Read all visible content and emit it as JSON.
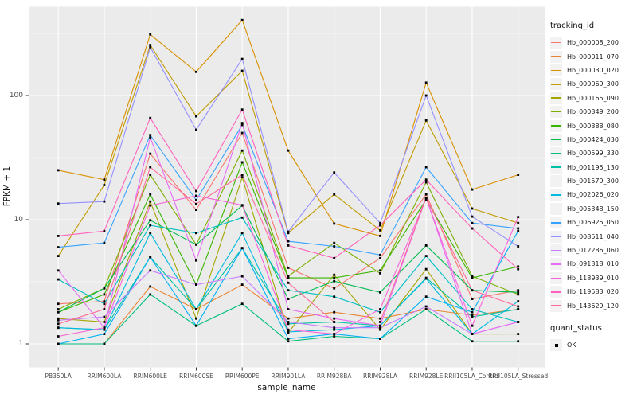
{
  "chart_data": {
    "type": "line",
    "title": "",
    "xlabel": "sample_name",
    "ylabel": "FPKM + 1",
    "y_scale": "log10",
    "y_ticks": [
      1,
      10,
      100
    ],
    "y_minor_ticks": [
      3.162,
      31.62,
      316.2
    ],
    "ylim": [
      1,
      450
    ],
    "grid": true,
    "legend_position": "right",
    "legend_title": "tracking_id",
    "point_marker": "black-square",
    "categories": [
      "PB350LA",
      "RRIM600LA",
      "RRIM600LE",
      "RRIM600SE",
      "RRIM600PE",
      "RRIM901LA",
      "RRIM928BA",
      "RRIM928LA",
      "RRIM928LE",
      "RRII105LA_Control",
      "RRII105LA_Stressed"
    ],
    "series": [
      {
        "name": "Hb_000008_200",
        "color": "#F8766D",
        "values": [
          2.1,
          2.2,
          34,
          12,
          50,
          4.1,
          2.8,
          4.9,
          16,
          2.3,
          2.7
        ]
      },
      {
        "name": "Hb_000011_070",
        "color": "#EA8331",
        "values": [
          1.0,
          1.0,
          2.9,
          1.9,
          3.0,
          1.6,
          1.8,
          1.6,
          1.9,
          1.7,
          1.9
        ]
      },
      {
        "name": "Hb_000030_020",
        "color": "#D89000",
        "values": [
          25,
          21,
          310,
          155,
          405,
          36,
          9.3,
          7.4,
          127,
          17.5,
          23
        ]
      },
      {
        "name": "Hb_000069_300",
        "color": "#C09B00",
        "values": [
          5.1,
          19,
          255,
          68,
          158,
          7.8,
          16,
          8.2,
          63,
          12.3,
          9.4
        ]
      },
      {
        "name": "Hb_000165_090",
        "color": "#A3A500",
        "values": [
          1.6,
          1.5,
          14,
          1.6,
          22,
          1.23,
          3.6,
          1.3,
          4.0,
          1.2,
          1.2
        ]
      },
      {
        "name": "Hb_000349_200",
        "color": "#7CAE00",
        "values": [
          1.9,
          2.8,
          23,
          6.3,
          36,
          3.5,
          6.5,
          3.7,
          20,
          3.5,
          2.5
        ]
      },
      {
        "name": "Hb_000388_080",
        "color": "#39B600",
        "values": [
          1.8,
          2.5,
          16,
          3.0,
          29,
          3.4,
          3.4,
          3.9,
          14.5,
          3.4,
          4.2
        ]
      },
      {
        "name": "Hb_000424_030",
        "color": "#00BB4E",
        "values": [
          1.8,
          2.8,
          9.9,
          6.3,
          13,
          2.3,
          3.2,
          2.6,
          6.2,
          2.7,
          2.6
        ]
      },
      {
        "name": "Hb_000599_330",
        "color": "#00BF7D",
        "values": [
          1.0,
          1.0,
          2.5,
          1.4,
          2.1,
          1.05,
          1.15,
          1.1,
          1.9,
          1.05,
          1.05
        ]
      },
      {
        "name": "Hb_001195_130",
        "color": "#00C1A3",
        "values": [
          1.35,
          1.3,
          5.0,
          1.9,
          5.9,
          1.45,
          1.5,
          1.4,
          3.4,
          1.65,
          1.9
        ]
      },
      {
        "name": "Hb_001579_300",
        "color": "#00BFC4",
        "values": [
          3.3,
          2.1,
          9.0,
          7.8,
          10.4,
          2.7,
          2.4,
          1.8,
          5.1,
          1.9,
          1.5
        ]
      },
      {
        "name": "Hb_002026_020",
        "color": "#00BAE0",
        "values": [
          1.35,
          1.3,
          7.8,
          1.9,
          7.8,
          1.25,
          1.3,
          1.4,
          3.35,
          1.2,
          2.2
        ]
      },
      {
        "name": "Hb_005348_150",
        "color": "#00B0F6",
        "values": [
          1.0,
          1.2,
          5.0,
          1.4,
          5.9,
          1.1,
          1.2,
          1.1,
          2.4,
          1.8,
          8.1
        ]
      },
      {
        "name": "Hb_006925_050",
        "color": "#35A2FF",
        "values": [
          6.0,
          6.5,
          48,
          14.4,
          58,
          6.7,
          6.1,
          5.2,
          26.5,
          9.4,
          8.5
        ]
      },
      {
        "name": "Hb_008511_040",
        "color": "#9590FF",
        "values": [
          13.5,
          14,
          245,
          53,
          197,
          8.0,
          24,
          9.4,
          100,
          10.6,
          6.1
        ]
      },
      {
        "name": "Hb_012286_060",
        "color": "#C77CFF",
        "values": [
          1.55,
          1.65,
          3.9,
          3.0,
          3.5,
          1.5,
          1.35,
          1.35,
          2.0,
          1.2,
          1.5
        ]
      },
      {
        "name": "Hb_091318_010",
        "color": "#E76BF3",
        "values": [
          3.9,
          1.35,
          46,
          4.7,
          60,
          1.9,
          1.6,
          1.4,
          15,
          1.2,
          1.5
        ]
      },
      {
        "name": "Hb_118939_010",
        "color": "#FA62DB",
        "values": [
          1.15,
          1.35,
          13,
          15.6,
          13.1,
          1.3,
          1.2,
          1.9,
          15,
          1.4,
          10.5
        ]
      },
      {
        "name": "Hb_119583_020",
        "color": "#FF62BC",
        "values": [
          7.4,
          8.1,
          66,
          17,
          77,
          6.2,
          4.9,
          9.0,
          21,
          8.5,
          4.0
        ]
      },
      {
        "name": "Hb_143629_120",
        "color": "#FF6A98",
        "values": [
          1.45,
          1.9,
          26.5,
          13.4,
          23,
          3.1,
          1.5,
          1.5,
          15,
          2.7,
          2.0
        ]
      }
    ],
    "quant_legend": {
      "title": "quant_status",
      "label": "OK"
    }
  },
  "colors": {
    "figure_bg": "#FFFFFF",
    "panel_bg": "#EBEBEB",
    "grid": "#FFFFFF",
    "axis_text": "#4D4D4D",
    "tick_mark": "#333333",
    "point": "#000000",
    "legend_key_bg": "#F2F2F2"
  }
}
